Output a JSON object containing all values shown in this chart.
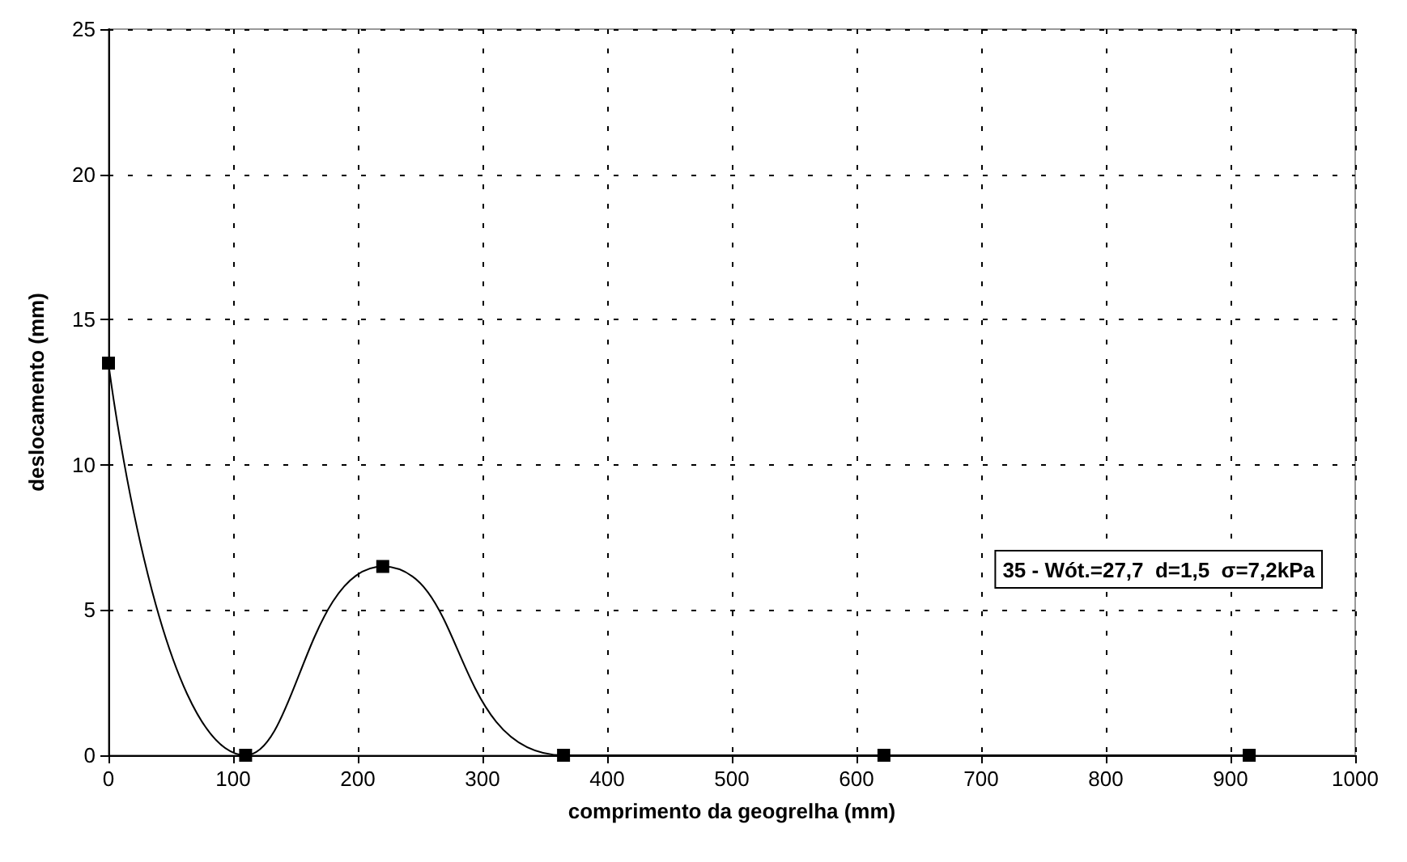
{
  "chart_data": {
    "type": "line",
    "x": [
      0,
      110,
      220,
      365,
      622,
      915
    ],
    "series": [
      {
        "color": "#000000",
        "values": [
          13.5,
          0,
          6.5,
          0,
          0,
          0
        ]
      }
    ],
    "xlabel": "comprimento da geogrelha (mm)",
    "ylabel": "deslocamento (mm)",
    "annotations": [
      "35 - Wót.=27,7  d=1,5  σ=7,2kPa"
    ],
    "xlim": [
      0,
      1000
    ],
    "xticks": [
      0,
      100,
      200,
      300,
      400,
      500,
      600,
      700,
      800,
      900,
      1000
    ],
    "ylim": [
      0,
      25
    ],
    "yticks": [
      0,
      5,
      10,
      15,
      20,
      25
    ],
    "grid": true,
    "marker": "square",
    "line_style": "solid"
  }
}
